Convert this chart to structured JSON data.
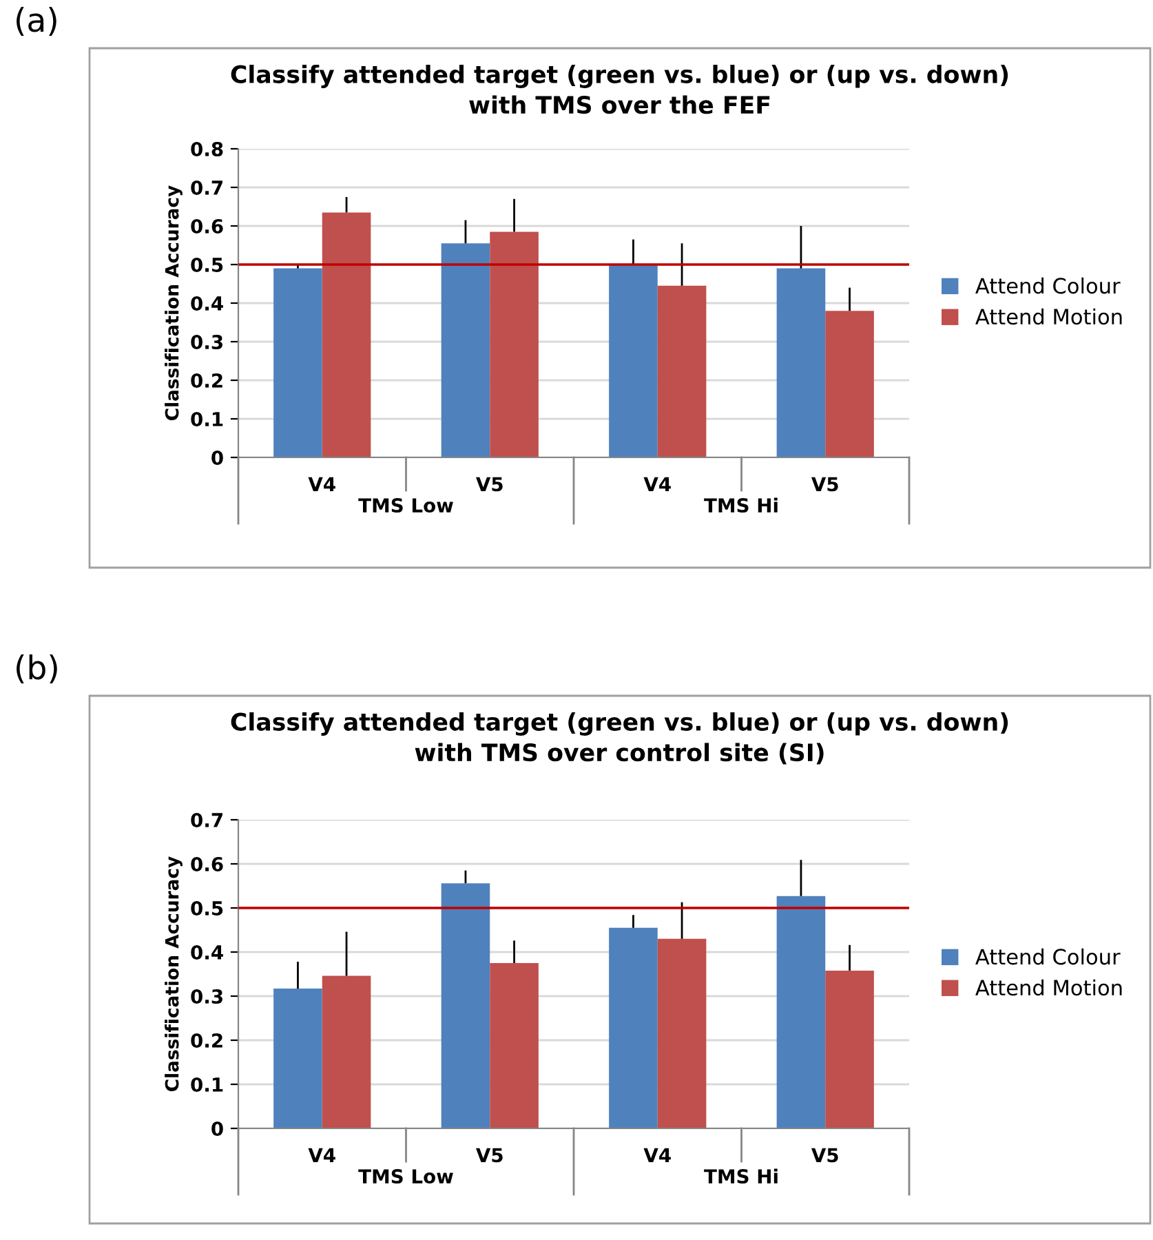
{
  "chart_data": [
    {
      "type": "bar",
      "title": "Classify attended target (green vs. blue) or (up vs. down)\nwith TMS over the FEF",
      "ylabel": "Classification Accuracy",
      "categories": [
        "V4",
        "V5",
        "V4",
        "V5"
      ],
      "series": [
        {
          "name": "Attend Colour",
          "color": "#4f81bd",
          "values": [
            0.49,
            0.555,
            0.5,
            0.49
          ],
          "errors": [
            [
              0.49,
              0.5
            ],
            [
              0.555,
              0.615
            ],
            [
              0.5,
              0.565
            ],
            [
              0.49,
              0.6
            ]
          ]
        },
        {
          "name": "Attend Motion",
          "color": "#c0504d",
          "values": [
            0.635,
            0.585,
            0.445,
            0.38
          ],
          "errors": [
            [
              0.635,
              0.675
            ],
            [
              0.585,
              0.67
            ],
            [
              0.445,
              0.555
            ],
            [
              0.38,
              0.44
            ]
          ]
        }
      ],
      "ylim": [
        0,
        0.8
      ],
      "yticks": [
        0,
        0.1,
        0.2,
        0.3,
        0.4,
        0.5,
        0.6,
        0.7,
        0.8
      ],
      "grid": "y",
      "legend": "right",
      "ref_lines": [
        {
          "axis": "y",
          "value": 0.5,
          "color": "#c00000"
        }
      ],
      "annotations": [
        "(a)",
        "TMS Low",
        "TMS Hi"
      ]
    },
    {
      "type": "bar",
      "title": "Classify attended target (green vs. blue) or (up vs. down)\nwith TMS over control site (SI)",
      "ylabel": "Classification Accuracy",
      "categories": [
        "V4",
        "V5",
        "V4",
        "V5"
      ],
      "series": [
        {
          "name": "Attend Colour",
          "color": "#4f81bd",
          "values": [
            0.317,
            0.556,
            0.455,
            0.527
          ],
          "errors": [
            [
              0.317,
              0.378
            ],
            [
              0.556,
              0.585
            ],
            [
              0.455,
              0.484
            ],
            [
              0.527,
              0.609
            ]
          ]
        },
        {
          "name": "Attend Motion",
          "color": "#c0504d",
          "values": [
            0.346,
            0.375,
            0.43,
            0.358
          ],
          "errors": [
            [
              0.346,
              0.446
            ],
            [
              0.375,
              0.426
            ],
            [
              0.43,
              0.513
            ],
            [
              0.358,
              0.416
            ]
          ]
        }
      ],
      "ylim": [
        0,
        0.7
      ],
      "yticks": [
        0,
        0.1,
        0.2,
        0.3,
        0.4,
        0.5,
        0.6,
        0.7
      ],
      "grid": "y",
      "legend": "right",
      "ref_lines": [
        {
          "axis": "y",
          "value": 0.5,
          "color": "#c00000"
        }
      ],
      "annotations": [
        "(b)",
        "TMS Low",
        "TMS Hi"
      ]
    }
  ]
}
